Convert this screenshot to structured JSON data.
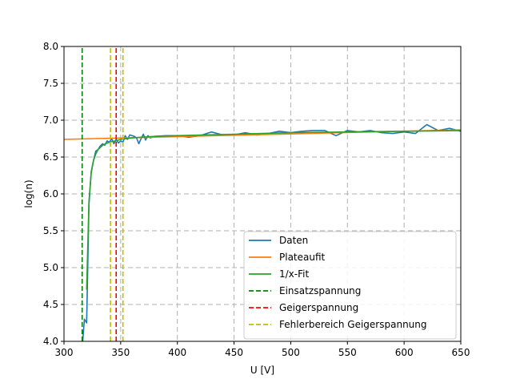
{
  "chart_data": {
    "type": "line",
    "xlabel": "U [V]",
    "ylabel": "log(n)",
    "xlim": [
      300,
      650
    ],
    "ylim": [
      4.0,
      8.0
    ],
    "x_ticks": [
      "300",
      "350",
      "400",
      "450",
      "500",
      "550",
      "600",
      "650"
    ],
    "y_ticks": [
      "4.0",
      "4.5",
      "5.0",
      "5.5",
      "6.0",
      "6.5",
      "7.0",
      "7.5",
      "8.0"
    ],
    "grid": true,
    "legend_position": "lower-right",
    "series": [
      {
        "name": "Daten",
        "color": "#1f77b4",
        "style": "solid",
        "x": [
          316,
          318,
          320,
          322,
          324,
          326,
          328,
          330,
          332,
          334,
          336,
          338,
          340,
          342,
          344,
          346,
          348,
          350,
          352,
          354,
          356,
          358,
          360,
          362,
          364,
          366,
          368,
          370,
          372,
          374,
          376,
          378,
          380,
          390,
          400,
          410,
          420,
          430,
          440,
          450,
          460,
          470,
          480,
          490,
          500,
          510,
          520,
          530,
          540,
          550,
          560,
          570,
          580,
          590,
          600,
          610,
          620,
          630,
          640,
          650
        ],
        "y": [
          3.9,
          4.3,
          4.25,
          5.85,
          6.3,
          6.45,
          6.58,
          6.6,
          6.65,
          6.68,
          6.66,
          6.72,
          6.7,
          6.75,
          6.68,
          6.74,
          6.69,
          6.72,
          6.7,
          6.79,
          6.74,
          6.8,
          6.79,
          6.78,
          6.76,
          6.68,
          6.75,
          6.81,
          6.73,
          6.79,
          6.76,
          6.77,
          6.78,
          6.79,
          6.79,
          6.77,
          6.79,
          6.84,
          6.8,
          6.8,
          6.83,
          6.8,
          6.82,
          6.85,
          6.83,
          6.85,
          6.86,
          6.86,
          6.79,
          6.86,
          6.84,
          6.86,
          6.83,
          6.82,
          6.84,
          6.82,
          6.94,
          6.86,
          6.89,
          6.85
        ]
      },
      {
        "name": "Plateaufit",
        "color": "#ff7f0e",
        "style": "solid",
        "x": [
          300,
          650
        ],
        "y": [
          6.74,
          6.87
        ]
      },
      {
        "name": "1/x-Fit",
        "color": "#2ca02c",
        "style": "solid",
        "x": [
          320,
          322,
          324,
          326,
          328,
          330,
          334,
          338,
          342,
          346,
          350,
          360,
          380,
          400,
          450,
          500,
          550,
          600,
          650
        ],
        "y": [
          4.7,
          5.9,
          6.28,
          6.45,
          6.54,
          6.6,
          6.66,
          6.69,
          6.71,
          6.72,
          6.74,
          6.76,
          6.78,
          6.79,
          6.81,
          6.83,
          6.84,
          6.85,
          6.86
        ]
      },
      {
        "name": "Einsatzspannung",
        "color": "#008000",
        "style": "dashed",
        "x": [
          316,
          316
        ],
        "y": [
          4.0,
          8.0
        ]
      },
      {
        "name": "Geigerspannung",
        "color": "#ff0000",
        "style": "dashed",
        "x": [
          346,
          346
        ],
        "y": [
          4.0,
          8.0
        ]
      },
      {
        "name": "Fehlerbereich Geigerspannung",
        "color": "#bfbf00",
        "style": "dashed",
        "x": [
          341,
          341
        ],
        "y": [
          4.0,
          8.0
        ]
      },
      {
        "name": "",
        "color": "#bfbf00",
        "style": "dashed",
        "x": [
          352,
          352
        ],
        "y": [
          4.0,
          8.0
        ]
      }
    ]
  }
}
